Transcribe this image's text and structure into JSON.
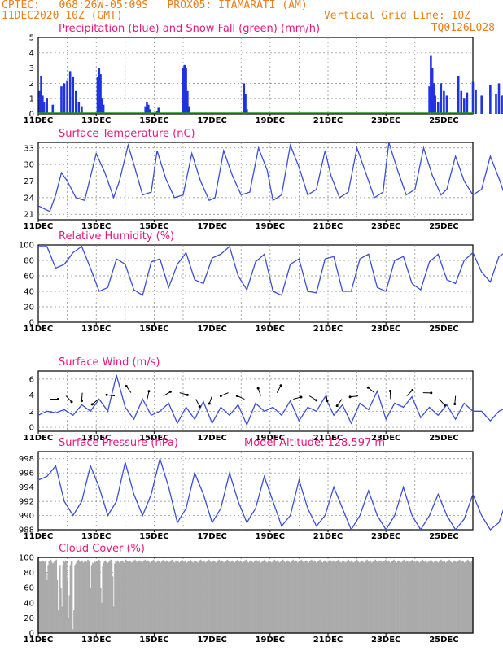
{
  "header": {
    "line1": "CPTEC:   068:26W-05:09S   PROX05: ITAMARATI (AM)",
    "line2": "11DEC2020 10Z (GMT)",
    "grid_note": "Vertical Grid Line: 10Z",
    "code": "TQ0126L028"
  },
  "colors": {
    "accent_orange": "#e8801c",
    "title_magenta": "#e8187c",
    "line_blue": "#3a4fd6",
    "precip_blue": "#2033e0",
    "snow_green": "#1a9a1a",
    "cloud_gray": "#aaaaaa"
  },
  "chart_data": [
    {
      "type": "bar",
      "title": "Precipitation (blue) and Snow Fall (green) (mm/h)",
      "x_ticks": [
        "11DEC",
        "13DEC",
        "15DEC",
        "17DEC",
        "19DEC",
        "21DEC",
        "23DEC",
        "25DEC"
      ],
      "ylim": [
        0,
        5
      ],
      "y_ticks": [
        0,
        1,
        2,
        3,
        4,
        5
      ],
      "series": [
        {
          "name": "Precipitation",
          "color": "#2033e0",
          "x": [
            0.05,
            0.1,
            0.15,
            0.2,
            0.3,
            0.5,
            0.8,
            0.9,
            1.0,
            1.1,
            1.2,
            1.3,
            1.4,
            1.5,
            2.05,
            2.1,
            2.15,
            2.2,
            2.25,
            3.7,
            3.75,
            3.8,
            3.85,
            4.1,
            4.15,
            5.0,
            5.05,
            5.1,
            5.15,
            5.2,
            7.1,
            7.15,
            7.2,
            13.5,
            13.55,
            13.6,
            13.65,
            13.7,
            13.8,
            13.9,
            14.0,
            14.1,
            14.5,
            14.6,
            14.7,
            14.8,
            15.0,
            15.1,
            15.3,
            15.6,
            15.8,
            15.9,
            16.0,
            16.1,
            16.2,
            16.3,
            16.5,
            16.7,
            16.9,
            17.3,
            17.5
          ],
          "values": [
            1.5,
            2.5,
            1.2,
            0.8,
            1.0,
            0.6,
            1.8,
            2.0,
            2.2,
            2.8,
            2.4,
            1.5,
            0.8,
            0.5,
            2.4,
            3.0,
            2.6,
            1.0,
            0.6,
            0.5,
            0.8,
            0.6,
            0.3,
            0.2,
            0.4,
            3.0,
            3.2,
            3.0,
            1.5,
            0.5,
            2.0,
            1.3,
            0.3,
            1.8,
            3.8,
            3.0,
            2.0,
            1.2,
            0.8,
            2.0,
            1.5,
            1.2,
            2.5,
            1.5,
            1.0,
            1.4,
            2.1,
            1.6,
            1.2,
            1.9,
            1.3,
            2.0,
            1.2,
            1.7,
            1.0,
            0.8,
            0.7,
            1.3,
            1.1,
            0.6,
            1.2
          ]
        },
        {
          "name": "Snow Fall",
          "color": "#1a9a1a",
          "values": []
        }
      ]
    },
    {
      "type": "line",
      "title": "Surface Temperature (nC)",
      "x_ticks": [
        "11DEC",
        "13DEC",
        "15DEC",
        "17DEC",
        "19DEC",
        "21DEC",
        "23DEC",
        "25DEC"
      ],
      "ylim": [
        20,
        34
      ],
      "y_ticks": [
        21,
        24,
        27,
        30,
        33
      ],
      "x": [
        0,
        0.2,
        0.4,
        0.6,
        0.8,
        1.0,
        1.3,
        1.6,
        2.0,
        2.3,
        2.6,
        2.8,
        3.1,
        3.3,
        3.6,
        3.9,
        4.1,
        4.4,
        4.7,
        5.0,
        5.3,
        5.6,
        5.9,
        6.1,
        6.4,
        6.7,
        7.0,
        7.3,
        7.6,
        7.9,
        8.1,
        8.4,
        8.7,
        9.0,
        9.3,
        9.6,
        9.9,
        10.1,
        10.4,
        10.7,
        11.0,
        11.3,
        11.6,
        11.9,
        12.1,
        12.4,
        12.7,
        13.0,
        13.3,
        13.6,
        13.9,
        14.1,
        14.4,
        14.7,
        15.0,
        15.3,
        15.6,
        15.9,
        16.1,
        16.4,
        16.7,
        17.0,
        17.3,
        17.6,
        18.0
      ],
      "y": [
        22.5,
        22.0,
        21.5,
        24.5,
        28.5,
        27.0,
        24.0,
        23.5,
        32.0,
        28.5,
        24.0,
        27.0,
        33.5,
        30.0,
        24.5,
        25.0,
        32.5,
        27.5,
        24.0,
        24.5,
        32.0,
        27.0,
        23.5,
        24.0,
        32.5,
        28.0,
        24.5,
        25.0,
        33.0,
        29.0,
        23.5,
        24.5,
        33.5,
        29.5,
        24.5,
        25.5,
        32.5,
        28.0,
        24.0,
        25.0,
        33.0,
        28.5,
        24.0,
        25.0,
        34.0,
        29.0,
        24.5,
        25.5,
        33.0,
        28.0,
        24.5,
        25.5,
        31.5,
        27.0,
        24.5,
        25.5,
        31.5,
        27.5,
        24.5,
        25.0,
        32.0,
        27.5,
        24.0,
        25.0,
        33.0
      ]
    },
    {
      "type": "line",
      "title": "Relative Humidity (%)",
      "x_ticks": [
        "11DEC",
        "13DEC",
        "15DEC",
        "17DEC",
        "19DEC",
        "21DEC",
        "23DEC",
        "25DEC"
      ],
      "ylim": [
        0,
        100
      ],
      "y_ticks": [
        0,
        20,
        40,
        60,
        80,
        100
      ],
      "x": [
        0,
        0.3,
        0.6,
        0.9,
        1.2,
        1.5,
        1.8,
        2.1,
        2.4,
        2.7,
        3.0,
        3.3,
        3.6,
        3.9,
        4.2,
        4.5,
        4.8,
        5.1,
        5.4,
        5.7,
        6.0,
        6.3,
        6.6,
        6.9,
        7.2,
        7.5,
        7.8,
        8.1,
        8.4,
        8.7,
        9.0,
        9.3,
        9.6,
        9.9,
        10.2,
        10.5,
        10.8,
        11.1,
        11.4,
        11.7,
        12.0,
        12.3,
        12.6,
        12.9,
        13.2,
        13.5,
        13.8,
        14.1,
        14.4,
        14.7,
        15.0,
        15.3,
        15.6,
        15.9,
        16.2,
        16.5,
        16.8,
        17.1,
        17.4,
        17.7,
        18.0
      ],
      "y": [
        98,
        98,
        70,
        75,
        90,
        98,
        70,
        40,
        45,
        82,
        75,
        42,
        35,
        78,
        82,
        45,
        75,
        90,
        55,
        50,
        83,
        88,
        98,
        60,
        42,
        78,
        88,
        40,
        35,
        75,
        82,
        40,
        38,
        82,
        85,
        40,
        40,
        82,
        88,
        45,
        40,
        80,
        85,
        50,
        42,
        78,
        88,
        55,
        50,
        80,
        90,
        65,
        52,
        85,
        92,
        60,
        50,
        85,
        88,
        60,
        45
      ]
    },
    {
      "type": "line",
      "title": "Surface Wind (m/s)",
      "x_ticks": [
        "11DEC",
        "13DEC",
        "15DEC",
        "17DEC",
        "19DEC",
        "21DEC",
        "23DEC",
        "25DEC"
      ],
      "ylim": [
        -0.5,
        7
      ],
      "y_ticks": [
        0,
        2,
        4,
        6
      ],
      "x": [
        0,
        0.3,
        0.6,
        0.9,
        1.2,
        1.5,
        1.8,
        2.1,
        2.4,
        2.7,
        3.0,
        3.3,
        3.6,
        3.9,
        4.2,
        4.5,
        4.8,
        5.1,
        5.4,
        5.7,
        6.0,
        6.3,
        6.6,
        6.9,
        7.2,
        7.5,
        7.8,
        8.1,
        8.4,
        8.7,
        9.0,
        9.3,
        9.6,
        9.9,
        10.2,
        10.5,
        10.8,
        11.1,
        11.4,
        11.7,
        12.0,
        12.3,
        12.6,
        12.9,
        13.2,
        13.5,
        13.8,
        14.1,
        14.4,
        14.7,
        15.0,
        15.3,
        15.6,
        15.9,
        16.2,
        16.5,
        16.8,
        17.1,
        17.4,
        17.7,
        18.0
      ],
      "y": [
        1.5,
        2.0,
        1.8,
        2.2,
        1.5,
        2.8,
        2.0,
        3.5,
        2.0,
        6.5,
        2.5,
        1.0,
        3.5,
        1.5,
        2.0,
        3.0,
        0.5,
        2.5,
        1.0,
        3.2,
        0.5,
        2.5,
        1.5,
        2.8,
        0.3,
        3.0,
        2.0,
        2.5,
        1.5,
        3.3,
        0.8,
        2.5,
        2.0,
        3.8,
        1.5,
        2.8,
        0.5,
        3.0,
        2.2,
        4.5,
        1.0,
        3.0,
        2.5,
        3.8,
        1.2,
        2.5,
        1.5,
        2.8,
        1.0,
        3.0,
        2.0,
        2.0,
        0.8,
        2.0,
        2.5,
        1.5,
        2.8,
        2.0,
        1.0,
        2.5,
        0.5
      ]
    },
    {
      "type": "line",
      "title": "Surface Pressure (hPa)",
      "annotation": "Model Altitude: 128.597  m",
      "x_ticks": [
        "11DEC",
        "13DEC",
        "15DEC",
        "17DEC",
        "19DEC",
        "21DEC",
        "23DEC",
        "25DEC"
      ],
      "ylim": [
        988,
        999
      ],
      "y_ticks": [
        988,
        990,
        992,
        994,
        996,
        998
      ],
      "x": [
        0,
        0.3,
        0.6,
        0.9,
        1.2,
        1.5,
        1.8,
        2.1,
        2.4,
        2.7,
        3.0,
        3.3,
        3.6,
        3.9,
        4.2,
        4.5,
        4.8,
        5.1,
        5.4,
        5.7,
        6.0,
        6.3,
        6.6,
        6.9,
        7.2,
        7.5,
        7.8,
        8.1,
        8.4,
        8.7,
        9.0,
        9.3,
        9.6,
        9.9,
        10.2,
        10.5,
        10.8,
        11.1,
        11.4,
        11.7,
        12.0,
        12.3,
        12.6,
        12.9,
        13.2,
        13.5,
        13.8,
        14.1,
        14.4,
        14.7,
        15.0,
        15.3,
        15.6,
        15.9,
        16.2,
        16.5,
        16.8,
        17.1,
        17.4,
        17.7,
        18.0
      ],
      "y": [
        995,
        995.5,
        997,
        992,
        990,
        992,
        997,
        994,
        990,
        992,
        997.5,
        993,
        990,
        993,
        998,
        994,
        989,
        991,
        996,
        993,
        989,
        991,
        996,
        992,
        989,
        991,
        995.5,
        992,
        988.5,
        990,
        995,
        991,
        988.5,
        990,
        994,
        991,
        988,
        990,
        993.5,
        990,
        988,
        990,
        994,
        990,
        988,
        990,
        993,
        990,
        988,
        989.5,
        993,
        990,
        988,
        989,
        992.5,
        990,
        988,
        989,
        995,
        990,
        989
      ]
    },
    {
      "type": "bar",
      "title": "Cloud Cover (%)",
      "x_ticks": [
        "11DEC",
        "13DEC",
        "15DEC",
        "17DEC",
        "19DEC",
        "21DEC",
        "23DEC",
        "25DEC"
      ],
      "ylim": [
        0,
        100
      ],
      "y_ticks": [
        0,
        20,
        40,
        60,
        80,
        100
      ],
      "series": [
        {
          "name": "Cloud Cover",
          "color": "#aaaaaa",
          "values": [
            95,
            95,
            94,
            95,
            96,
            95,
            94,
            95,
            80,
            70,
            90,
            95,
            96,
            97,
            94,
            92,
            93,
            95,
            96,
            97,
            70,
            30,
            85,
            90,
            60,
            35,
            90,
            95,
            94,
            96,
            95,
            70,
            20,
            50,
            90,
            95,
            96,
            5,
            30,
            90,
            92,
            95,
            96,
            97,
            95,
            94,
            96,
            95,
            93,
            94,
            96,
            95,
            94,
            97,
            96,
            95,
            60,
            90,
            93,
            92,
            95,
            94,
            93,
            95,
            96,
            97,
            95,
            60,
            40,
            88,
            93,
            95,
            96,
            94,
            92,
            93,
            95,
            96,
            97,
            95,
            75,
            35,
            92,
            95,
            94,
            96,
            95,
            93,
            94,
            95,
            96,
            95,
            93,
            94,
            97,
            96,
            95,
            94,
            96,
            95,
            93,
            94,
            95,
            96,
            97,
            95,
            94,
            93,
            95,
            96,
            95,
            94,
            93,
            95,
            96,
            97,
            95,
            94,
            96,
            95,
            93,
            94,
            95,
            96,
            97,
            95,
            94,
            93,
            95,
            96,
            95,
            94,
            93,
            95,
            96,
            97,
            95,
            94,
            96,
            95,
            93,
            94,
            95,
            96,
            97,
            95,
            94,
            93,
            95,
            96,
            95,
            94,
            93,
            95,
            96,
            97,
            95,
            94,
            96,
            95,
            93,
            94,
            95,
            96,
            97,
            95,
            94,
            93,
            95,
            96,
            95,
            94,
            93,
            95,
            96,
            97,
            95,
            94,
            96,
            95,
            93,
            94,
            95,
            96,
            97,
            95,
            94,
            93,
            95,
            96,
            95,
            94,
            93,
            95,
            96,
            97,
            95,
            94,
            96,
            95,
            93,
            94,
            95,
            96,
            97,
            95,
            94,
            93,
            95,
            96,
            95,
            94,
            93,
            95,
            96,
            97,
            95,
            94,
            96,
            95,
            93,
            94,
            95,
            96,
            97,
            95,
            94,
            93,
            95,
            96,
            95,
            94,
            93,
            95,
            96,
            97,
            95,
            94,
            96,
            95,
            93,
            94,
            95,
            96,
            97,
            95,
            94,
            93,
            95,
            96,
            95,
            94,
            93,
            95,
            96,
            97,
            95,
            94,
            96,
            95,
            93,
            94,
            95,
            96,
            97,
            95,
            94,
            93,
            95,
            96,
            95,
            94,
            93,
            95,
            96,
            97,
            95,
            94,
            96,
            95,
            93,
            94,
            95,
            96,
            97,
            95,
            94,
            93,
            95,
            96,
            95,
            94,
            93,
            95,
            96,
            97,
            95,
            94,
            96,
            95,
            93,
            94,
            95,
            96,
            97,
            95,
            94,
            93,
            95,
            96,
            95,
            94,
            93,
            95,
            96,
            97,
            95,
            94,
            96,
            95,
            93,
            94,
            95,
            96,
            97,
            95,
            94,
            93,
            95,
            96,
            95,
            94,
            93,
            95,
            96,
            97,
            95,
            94,
            96,
            95,
            93,
            94,
            95,
            96,
            97,
            95,
            94,
            93,
            95,
            96,
            95,
            94,
            93,
            95,
            96,
            97,
            95,
            94,
            96,
            95,
            93,
            94,
            95,
            96,
            97,
            95,
            94,
            93,
            95,
            96,
            95,
            94,
            93,
            95,
            96,
            97,
            95,
            94,
            96,
            95,
            93,
            94,
            95,
            96,
            97,
            95,
            94,
            93,
            95,
            96,
            95,
            94,
            93,
            95,
            96,
            97,
            95,
            94,
            96,
            95,
            93,
            94,
            95,
            96,
            97,
            95,
            94,
            93,
            95,
            96,
            95,
            94,
            93,
            95,
            96,
            97,
            95,
            94,
            96,
            95,
            93,
            94,
            95,
            96,
            97,
            95,
            94,
            93,
            95,
            96,
            95,
            94,
            93,
            95,
            96,
            97,
            95,
            94,
            96,
            95,
            93,
            94,
            95,
            96,
            97,
            95,
            94,
            93,
            95,
            96,
            95,
            94,
            93,
            95,
            96,
            97,
            95,
            94,
            96,
            95,
            93,
            94,
            95,
            96,
            97,
            95,
            94,
            93,
            95,
            96
          ]
        }
      ]
    }
  ]
}
